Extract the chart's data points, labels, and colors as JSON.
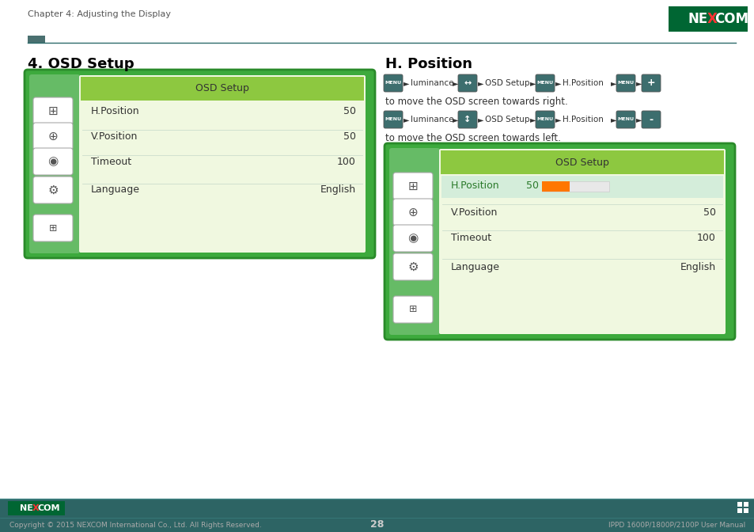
{
  "page_title": "Chapter 4: Adjusting the Display",
  "page_number": "28",
  "footer_copyright": "Copyright © 2015 NEXCOM International Co., Ltd. All Rights Reserved.",
  "footer_right": "IPPD 1600P/1800P/2100P User Manual",
  "header_line_color": "#2d6b6b",
  "header_rect_color": "#4a7c7c",
  "section1_title": "4. OSD Setup",
  "section2_title": "H. Position",
  "osd_panel_outer": "#3daa3d",
  "osd_panel_inner": "#f0f8e0",
  "osd_left_col": "#66bb66",
  "osd_header_bg": "#8dc840",
  "osd_header_text": "OSD Setup",
  "row_labels": [
    "H.Position",
    "V.Position",
    "Timeout",
    "Language"
  ],
  "row_values": [
    "50",
    "50",
    "100",
    "English"
  ],
  "highlight_bg": "#d4edda",
  "highlight_text": "#2a7a2a",
  "progress_bg": "#e8e8e8",
  "progress_fill": "#ff7700",
  "desc1": "to move the OSD screen towards right.",
  "desc2": "to move the OSD screen towards left.",
  "footer_bar_color": "#2d6464",
  "btn_color": "#3d6e6e",
  "btn_green": "#3a8a3a",
  "nexcom_bg": "#006633"
}
